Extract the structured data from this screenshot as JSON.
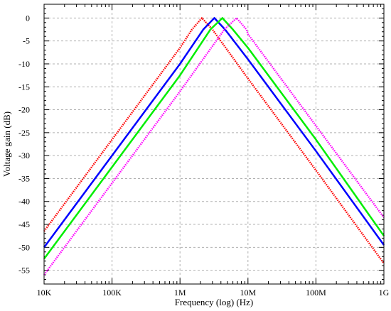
{
  "chart_data": {
    "type": "line",
    "xlabel": "Frequency (log) (Hz)",
    "ylabel": "Voltage gain (dB)",
    "x_scale": "log",
    "xlim": [
      10000,
      1000000000
    ],
    "ylim": [
      -58,
      3
    ],
    "grid": true,
    "x_ticks": [
      {
        "value": 10000,
        "label": "10K"
      },
      {
        "value": 100000,
        "label": "100K"
      },
      {
        "value": 1000000,
        "label": "1M"
      },
      {
        "value": 10000000,
        "label": "10M"
      },
      {
        "value": 100000000,
        "label": "100M"
      },
      {
        "value": 1000000000,
        "label": "1G"
      }
    ],
    "y_ticks": [
      {
        "value": 0,
        "label": "0"
      },
      {
        "value": -5,
        "label": "-5"
      },
      {
        "value": -10,
        "label": "-10"
      },
      {
        "value": -15,
        "label": "-15"
      },
      {
        "value": -20,
        "label": "-20"
      },
      {
        "value": -25,
        "label": "-25"
      },
      {
        "value": -30,
        "label": "-30"
      },
      {
        "value": -35,
        "label": "-35"
      },
      {
        "value": -40,
        "label": "-40"
      },
      {
        "value": -45,
        "label": "-45"
      },
      {
        "value": -50,
        "label": "-50"
      },
      {
        "value": -55,
        "label": "-55"
      }
    ],
    "series": [
      {
        "color": "#ff0000",
        "style": "dotted",
        "x": [
          10000,
          100000,
          1000000,
          1500000,
          2100000,
          3000000,
          10000000,
          100000000,
          1000000000
        ],
        "y": [
          -46.5,
          -26.5,
          -6.5,
          -2.5,
          0,
          -2.5,
          -13.2,
          -33.2,
          -53.5
        ]
      },
      {
        "color": "#0000ff",
        "style": "solid",
        "x": [
          10000,
          100000,
          1000000,
          2200000,
          3200000,
          4600000,
          10000000,
          100000000,
          1000000000
        ],
        "y": [
          -50,
          -30,
          -10,
          -2.5,
          0,
          -2.5,
          -9,
          -29,
          -49.5
        ]
      },
      {
        "color": "#00ee00",
        "style": "solid",
        "x": [
          10000,
          100000,
          1000000,
          2800000,
          4200000,
          6000000,
          10000000,
          100000000,
          1000000000
        ],
        "y": [
          -52.5,
          -32.5,
          -12.5,
          -2.5,
          0,
          -2.5,
          -6.5,
          -26.5,
          -47.5
        ]
      },
      {
        "color": "#ff00ff",
        "style": "dotted",
        "x": [
          10000,
          100000,
          1000000,
          4500000,
          6800000,
          9500000,
          10000000,
          100000000,
          1000000000
        ],
        "y": [
          -56,
          -36,
          -16,
          -2.5,
          0,
          -2.5,
          -3.5,
          -23.5,
          -43.5
        ]
      }
    ]
  }
}
